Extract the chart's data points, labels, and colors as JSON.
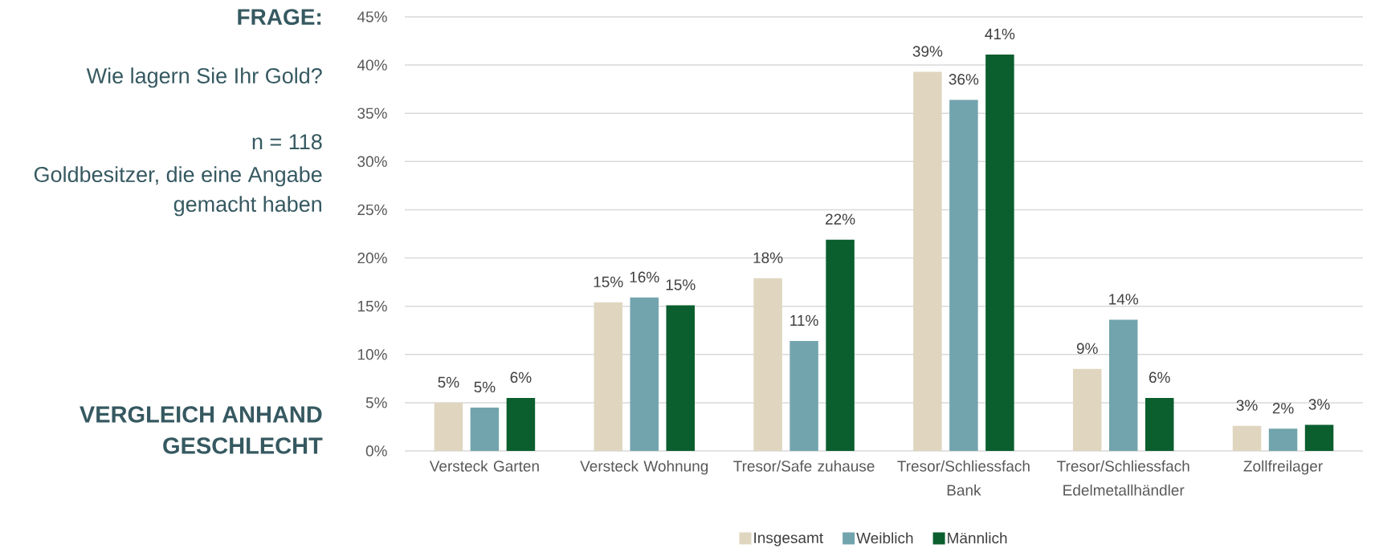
{
  "chart_data": {
    "type": "bar",
    "title": "Wie lagern Sie Ihr Gold?",
    "subtitle": "VERGLEICH ANHAND GESCHLECHT",
    "annotations": [
      "FRAGE:",
      "n = 118",
      "Goldbesitzer, die eine Angabe gemacht haben"
    ],
    "categories": [
      "Versteck Garten",
      "Versteck Wohnung",
      "Tresor/Safe zuhause",
      "Tresor/Schliessfach Bank",
      "Tresor/Schliessfach Edelmetallhändler",
      "Zollfreilager"
    ],
    "series": [
      {
        "name": "Insgesamt",
        "color": "#e0d6c0",
        "values": [
          5.0,
          15.4,
          17.9,
          39.3,
          8.5,
          2.6
        ],
        "value_labels": [
          "5%",
          "15%",
          "18%",
          "39%",
          "9%",
          "3%"
        ]
      },
      {
        "name": "Weiblich",
        "color": "#72a4ad",
        "values": [
          4.5,
          15.9,
          11.4,
          36.4,
          13.6,
          2.3
        ],
        "value_labels": [
          "5%",
          "16%",
          "11%",
          "36%",
          "14%",
          "2%"
        ]
      },
      {
        "name": "Männlich",
        "color": "#0b5e2e",
        "values": [
          5.5,
          15.1,
          21.9,
          41.1,
          5.5,
          2.7
        ],
        "value_labels": [
          "6%",
          "15%",
          "22%",
          "41%",
          "6%",
          "3%"
        ]
      }
    ],
    "ylim": [
      0,
      45
    ],
    "yticks": [
      {
        "value": 0,
        "label": "0%"
      },
      {
        "value": 5,
        "label": "5%"
      },
      {
        "value": 10,
        "label": "10%"
      },
      {
        "value": 15,
        "label": "15%"
      },
      {
        "value": 20,
        "label": "20%"
      },
      {
        "value": 25,
        "label": "25%"
      },
      {
        "value": 30,
        "label": "30%"
      },
      {
        "value": 35,
        "label": "35%"
      },
      {
        "value": 40,
        "label": "40%"
      },
      {
        "value": 45,
        "label": "45%"
      }
    ],
    "grid": "y",
    "legend": "bottom"
  }
}
